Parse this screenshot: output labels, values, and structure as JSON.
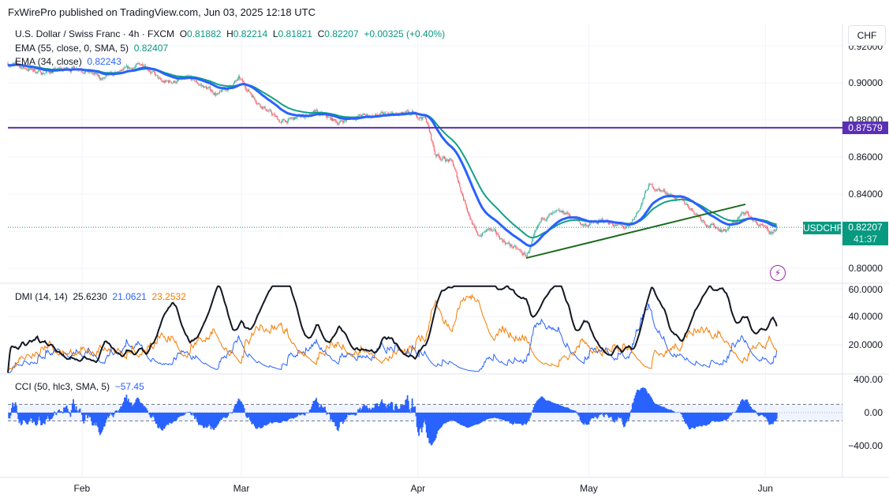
{
  "header": {
    "publisher": "FxWirePro published on TradingView.com, Jun 03, 2025 12:18 UTC"
  },
  "legend": {
    "symbol": "U.S. Dollar / Swiss Franc · 4h · FXCM",
    "o_label": "O",
    "o": "0.81882",
    "h_label": "H",
    "h": "0.82214",
    "l_label": "L",
    "l": "0.81821",
    "c_label": "C",
    "c": "0.82207",
    "change": "+0.00325 (+0.40%)",
    "ema55_label": "EMA (55, close, 0, SMA, 5)",
    "ema55_value": "0.82407",
    "ema34_label": "EMA (34, close)",
    "ema34_value": "0.82243",
    "dmi_label": "DMI (14, 14)",
    "dmi_adx": "25.6230",
    "dmi_plus": "21.0621",
    "dmi_minus": "23.2532",
    "cci_label": "CCI (50, hlc3, SMA, 5)",
    "cci_value": "−57.45"
  },
  "scale": {
    "currency_button": "CHF",
    "price_ticks": [
      "0.92000",
      "0.90000",
      "0.88000",
      "0.86000",
      "0.84000",
      "0.80000"
    ],
    "hline_value": "0.87579",
    "symbol_tag": "USDCHF",
    "last_price": "0.82207",
    "countdown": "41:37",
    "dmi_ticks": [
      "60.0000",
      "40.0000",
      "20.0000"
    ],
    "cci_ticks": [
      "400.00",
      "0.00",
      "−400.00"
    ],
    "time_ticks": [
      "Feb",
      "Mar",
      "Apr",
      "May",
      "Jun"
    ]
  },
  "colors": {
    "up": "#089981",
    "down": "#f23645",
    "ema55": "#12a086",
    "ema34": "#2962ff",
    "hline": "#5b2fb5",
    "trend": "#1e6b1e",
    "adx": "#131722",
    "plus_di": "#2962ff",
    "minus_di": "#f57c00",
    "cci": "#2962ff"
  },
  "chart_data": {
    "type": "candlestick",
    "title": "U.S. Dollar / Swiss Franc · 4h · FXCM",
    "x_unit": "days since Jan 19, 2025",
    "x_range": [
      0,
      135
    ],
    "ylim": [
      0.795,
      0.92
    ],
    "time_ticks": [
      {
        "label": "Feb",
        "day": 13
      },
      {
        "label": "Mar",
        "day": 41
      },
      {
        "label": "Apr",
        "day": 72
      },
      {
        "label": "May",
        "day": 102
      },
      {
        "label": "Jun",
        "day": 133
      }
    ],
    "close_keypoints": [
      [
        0,
        0.9106
      ],
      [
        6,
        0.9055
      ],
      [
        12.5,
        0.9085
      ],
      [
        16.6,
        0.902
      ],
      [
        24,
        0.9106
      ],
      [
        27,
        0.9
      ],
      [
        32,
        0.902
      ],
      [
        37,
        0.8936
      ],
      [
        40.6,
        0.902
      ],
      [
        44,
        0.8894
      ],
      [
        48,
        0.8787
      ],
      [
        54,
        0.8838
      ],
      [
        58,
        0.8787
      ],
      [
        61,
        0.882
      ],
      [
        71,
        0.883
      ],
      [
        73.4,
        0.881
      ],
      [
        75,
        0.8617
      ],
      [
        78,
        0.857
      ],
      [
        80,
        0.838
      ],
      [
        82.4,
        0.817
      ],
      [
        84.5,
        0.821
      ],
      [
        87,
        0.815
      ],
      [
        91,
        0.8064
      ],
      [
        94,
        0.8277
      ],
      [
        98,
        0.83
      ],
      [
        101,
        0.8234
      ],
      [
        105,
        0.8255
      ],
      [
        109,
        0.821
      ],
      [
        111,
        0.833
      ],
      [
        112.5,
        0.8447
      ],
      [
        116,
        0.8404
      ],
      [
        119,
        0.835
      ],
      [
        123,
        0.8234
      ],
      [
        126,
        0.8204
      ],
      [
        129.5,
        0.8306
      ],
      [
        131,
        0.8255
      ],
      [
        134,
        0.818
      ],
      [
        135,
        0.82207
      ]
    ],
    "horizontal_line": 0.87579,
    "trendline": [
      [
        91,
        0.8055
      ],
      [
        129.5,
        0.8345
      ]
    ],
    "series": [
      {
        "name": "EMA (55, close, 0, SMA, 5)",
        "last": 0.82407
      },
      {
        "name": "EMA (34, close)",
        "last": 0.82243
      }
    ],
    "dmi": {
      "ylim": [
        0,
        65
      ],
      "ticks": [
        20,
        40,
        60
      ],
      "adx_last": 25.623,
      "plus_di_last": 21.0621,
      "minus_di_last": 23.2532
    },
    "cci": {
      "ylim": [
        -550,
        450
      ],
      "ticks": [
        400,
        0,
        -400
      ],
      "bands": [
        -100,
        100
      ],
      "last": -57.45
    }
  }
}
